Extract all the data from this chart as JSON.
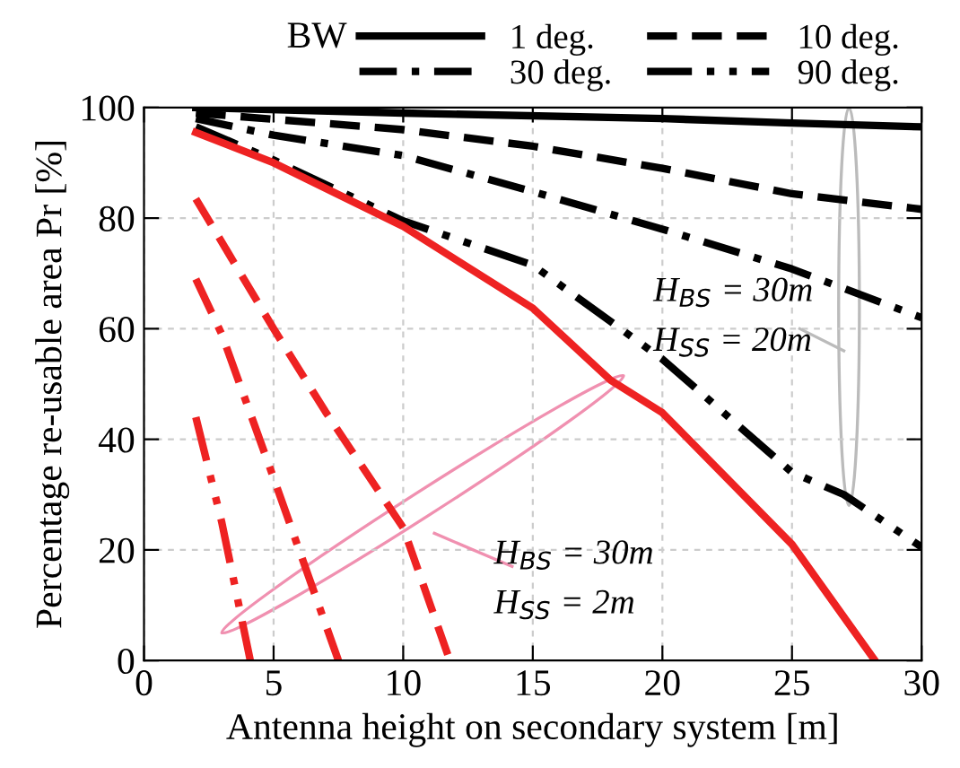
{
  "chart_data": {
    "type": "line",
    "xlabel": "Antenna height on secondary system [m]",
    "ylabel": "Percentage re-usable area Pr [%]",
    "legend_title": "BW",
    "legend": "top",
    "grid": true,
    "xlim": [
      0,
      30
    ],
    "ylim": [
      0,
      100
    ],
    "xticks": [
      0,
      5,
      10,
      15,
      20,
      25,
      30
    ],
    "yticks": [
      0,
      20,
      40,
      60,
      80,
      100
    ],
    "series": [
      {
        "name": "1 deg.",
        "color": "#000000",
        "line_style": "solid",
        "x": [
          2,
          10,
          20,
          25,
          30
        ],
        "values": [
          100,
          99,
          98,
          97.2,
          96.5
        ]
      },
      {
        "name": "10 deg.",
        "color": "#000000",
        "line_style": "dashed",
        "x": [
          2,
          10,
          15,
          20,
          25,
          30
        ],
        "values": [
          99,
          96,
          93,
          89,
          84.4,
          81.6
        ]
      },
      {
        "name": "30 deg.",
        "color": "#000000",
        "line_style": "dashdot",
        "x": [
          2,
          5,
          10,
          15,
          20,
          25,
          30
        ],
        "values": [
          98,
          95,
          91.3,
          84.8,
          78,
          70.8,
          62
        ]
      },
      {
        "name": "90 deg.",
        "color": "#000000",
        "line_style": "dashdotdot",
        "x": [
          2,
          5,
          10,
          15,
          20,
          25,
          27,
          30
        ],
        "values": [
          96.5,
          90.5,
          79.5,
          71.5,
          54.5,
          34,
          30,
          20.5
        ]
      },
      {
        "color": "#ee2222",
        "line_style": "solid",
        "x": [
          2,
          5,
          10,
          15,
          18,
          20,
          25,
          28.2
        ],
        "values": [
          95.5,
          90,
          78.5,
          63.7,
          50.7,
          44.8,
          21,
          0
        ]
      },
      {
        "color": "#ee2222",
        "line_style": "dashed",
        "x": [
          2,
          5,
          7,
          10,
          11.8
        ],
        "values": [
          83.5,
          60,
          45,
          24,
          0
        ]
      },
      {
        "color": "#ee2222",
        "line_style": "dashdot",
        "x": [
          2,
          3,
          5,
          7.5
        ],
        "values": [
          69,
          59,
          33,
          0
        ]
      },
      {
        "color": "#ee2222",
        "line_style": "dashdotdot",
        "x": [
          2,
          3,
          4.1
        ],
        "values": [
          44,
          25,
          0
        ]
      }
    ],
    "annotations": [
      "H$_{BS}$ = 30m",
      "H$_{SS}$ = 20m",
      "H$_{BS}$ = 30m",
      "H$_{SS}$ = 2m"
    ]
  }
}
